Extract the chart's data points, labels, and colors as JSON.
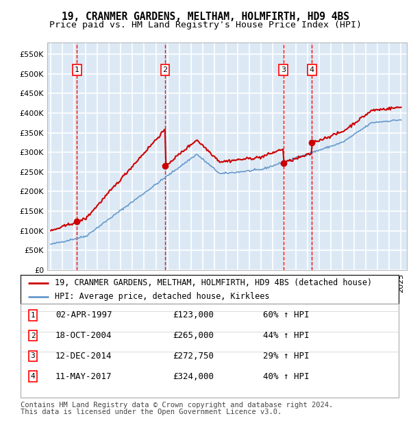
{
  "title": "19, CRANMER GARDENS, MELTHAM, HOLMFIRTH, HD9 4BS",
  "subtitle": "Price paid vs. HM Land Registry's House Price Index (HPI)",
  "ylim": [
    0,
    580000
  ],
  "yticks": [
    0,
    50000,
    100000,
    150000,
    200000,
    250000,
    300000,
    350000,
    400000,
    450000,
    500000,
    550000
  ],
  "ytick_labels": [
    "£0",
    "£50K",
    "£100K",
    "£150K",
    "£200K",
    "£250K",
    "£300K",
    "£350K",
    "£400K",
    "£450K",
    "£500K",
    "£550K"
  ],
  "xlim_start": 1994.7,
  "xlim_end": 2025.5,
  "plot_bg_color": "#dce9f5",
  "grid_color": "#ffffff",
  "sale_dates": [
    1997.25,
    2004.8,
    2014.92,
    2017.36
  ],
  "sale_prices": [
    123000,
    265000,
    272750,
    324000
  ],
  "sale_labels": [
    "1",
    "2",
    "3",
    "4"
  ],
  "sale_label_dates": [
    "02-APR-1997",
    "18-OCT-2004",
    "12-DEC-2014",
    "11-MAY-2017"
  ],
  "sale_label_prices": [
    "£123,000",
    "£265,000",
    "£272,750",
    "£324,000"
  ],
  "sale_label_hpi": [
    "60% ↑ HPI",
    "44% ↑ HPI",
    "29% ↑ HPI",
    "40% ↑ HPI"
  ],
  "red_line_color": "#cc0000",
  "blue_line_color": "#6699cc",
  "vline_color": "#ff0000",
  "legend_house_label": "19, CRANMER GARDENS, MELTHAM, HOLMFIRTH, HD9 4BS (detached house)",
  "legend_hpi_label": "HPI: Average price, detached house, Kirklees",
  "footnote1": "Contains HM Land Registry data © Crown copyright and database right 2024.",
  "footnote2": "This data is licensed under the Open Government Licence v3.0.",
  "title_fontsize": 10.5,
  "subtitle_fontsize": 9.5,
  "tick_fontsize": 8,
  "legend_fontsize": 8.5,
  "table_fontsize": 9,
  "footnote_fontsize": 7.5
}
